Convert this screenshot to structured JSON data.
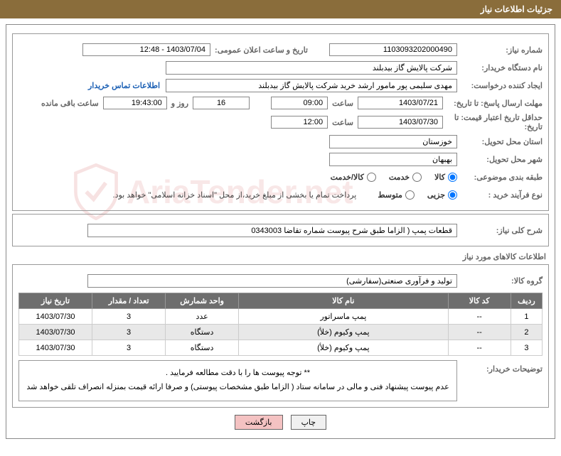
{
  "header": {
    "title": "جزئیات اطلاعات نیاز"
  },
  "fields": {
    "shomare_niaz_lbl": "شماره نیاز:",
    "shomare_niaz": "1103093202000490",
    "tarikh_elan_lbl": "تاریخ و ساعت اعلان عمومی:",
    "tarikh_elan": "1403/07/04 - 12:48",
    "kharidar_lbl": "نام دستگاه خریدار:",
    "kharidar": "شرکت پالایش گاز بیدبلند",
    "ijad_lbl": "ایجاد کننده درخواست:",
    "ijad": "مهدی سلیمی پور مامور ارشد خرید شرکت پالایش گاز بیدبلند",
    "contact_link": "اطلاعات تماس خریدار",
    "mohlat_lbl": "مهلت ارسال پاسخ: تا تاریخ:",
    "mohlat_date": "1403/07/21",
    "saat_lbl": "ساعت",
    "mohlat_time": "09:00",
    "days": "16",
    "rooz_va": "روز و",
    "remain_time": "19:43:00",
    "remain_lbl": "ساعت باقی مانده",
    "etebar_lbl": "حداقل تاریخ اعتبار قیمت: تا تاریخ:",
    "etebar_date": "1403/07/30",
    "etebar_time": "12:00",
    "ostan_lbl": "استان محل تحویل:",
    "ostan": "خوزستان",
    "shahr_lbl": "شهر محل تحویل:",
    "shahr": "بهبهان",
    "tabaghe_lbl": "طبقه بندی موضوعی:",
    "r_kala": "کالا",
    "r_khadmat": "خدمت",
    "r_kalakhadmat": "کالا/خدمت",
    "farayand_lbl": "نوع فرآیند خرید :",
    "r_jozi": "جزیی",
    "r_motavaset": "متوسط",
    "farayand_note": "پرداخت تمام یا بخشی از مبلغ خرید،از محل \"اسناد خزانه اسلامی\" خواهد بود.",
    "sharh_lbl": "شرح کلی نیاز:",
    "sharh": "قطعات پمپ ( الزاما طبق شرح پیوست شماره تقاضا 0343003",
    "section_goods": "اطلاعات کالاهای مورد نیاز",
    "group_lbl": "گروه کالا:",
    "group": "تولید و فرآوری صنعتی(سفارشی)"
  },
  "table": {
    "headers": [
      "ردیف",
      "کد کالا",
      "نام کالا",
      "واحد شمارش",
      "تعداد / مقدار",
      "تاریخ نیاز"
    ],
    "rows": [
      [
        "1",
        "--",
        "پمپ ماسراتور",
        "عدد",
        "3",
        "1403/07/30"
      ],
      [
        "2",
        "--",
        "پمپ وکیوم (خلأ)",
        "دستگاه",
        "3",
        "1403/07/30"
      ],
      [
        "3",
        "--",
        "پمپ وکیوم (خلأ)",
        "دستگاه",
        "3",
        "1403/07/30"
      ]
    ]
  },
  "desc": {
    "label": "توضیحات خریدار:",
    "line1": "** توجه پیوست ها  را با دقت مطالعه فرمایید .",
    "line2": "عدم پیوست پیشنهاد فنی و مالی در سامانه ستاد ( الزاما طبق مشخصات پیوستی)  و صرفا ارائه قیمت بمنزله انصراف تلقی خواهد شد"
  },
  "buttons": {
    "print": "چاپ",
    "back": "بازگشت"
  },
  "watermark": "AriaTender.net"
}
